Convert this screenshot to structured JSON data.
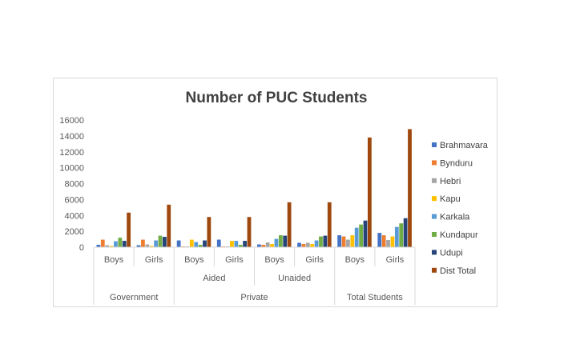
{
  "chart_data": {
    "type": "bar",
    "title": "Number of PUC Students",
    "xlabel": "",
    "ylabel": "",
    "ylim": [
      0,
      16000
    ],
    "yticks": [
      0,
      2000,
      4000,
      6000,
      8000,
      10000,
      12000,
      14000,
      16000
    ],
    "grid": false,
    "legend_position": "right",
    "categories": [
      {
        "label": "Boys",
        "group": "Government"
      },
      {
        "label": "Girls",
        "group": "Government"
      },
      {
        "label": "Boys",
        "group": "Aided"
      },
      {
        "label": "Girls",
        "group": "Aided"
      },
      {
        "label": "Boys",
        "group": "Unaided"
      },
      {
        "label": "Girls",
        "group": "Unaided"
      },
      {
        "label": "Boys",
        "group": "Total Students"
      },
      {
        "label": "Girls",
        "group": "Total Students"
      }
    ],
    "groups": [
      {
        "label": "Aided",
        "start": 2,
        "end": 3
      },
      {
        "label": "Unaided",
        "start": 4,
        "end": 5
      }
    ],
    "super_groups": [
      {
        "label": "Government",
        "start": 0,
        "end": 1
      },
      {
        "label": "Private",
        "start": 2,
        "end": 5
      },
      {
        "label": "Total Students",
        "start": 6,
        "end": 7
      }
    ],
    "series": [
      {
        "name": "Brahmavara",
        "color": "#4472c4",
        "values": [
          300,
          250,
          850,
          950,
          350,
          550,
          1500,
          1800
        ]
      },
      {
        "name": "Bynduru",
        "color": "#ed7d31",
        "values": [
          950,
          950,
          100,
          100,
          300,
          400,
          1350,
          1500
        ]
      },
      {
        "name": "Hebri",
        "color": "#a5a5a5",
        "values": [
          250,
          350,
          100,
          100,
          600,
          550,
          950,
          900
        ]
      },
      {
        "name": "Kapu",
        "color": "#ffc000",
        "values": [
          150,
          150,
          950,
          800,
          400,
          400,
          1500,
          1350
        ]
      },
      {
        "name": "Karkala",
        "color": "#5b9bd5",
        "values": [
          750,
          850,
          650,
          800,
          1050,
          850,
          2450,
          2550
        ]
      },
      {
        "name": "Kundapur",
        "color": "#70ad47",
        "values": [
          1200,
          1450,
          300,
          300,
          1500,
          1350,
          2850,
          3000
        ]
      },
      {
        "name": "Udupi",
        "color": "#264478",
        "values": [
          800,
          1300,
          850,
          800,
          1450,
          1450,
          3350,
          3650
        ]
      },
      {
        "name": "Dist Total",
        "color": "#9e480e",
        "values": [
          4350,
          5350,
          3800,
          3800,
          5650,
          5650,
          13800,
          14850
        ]
      }
    ]
  }
}
